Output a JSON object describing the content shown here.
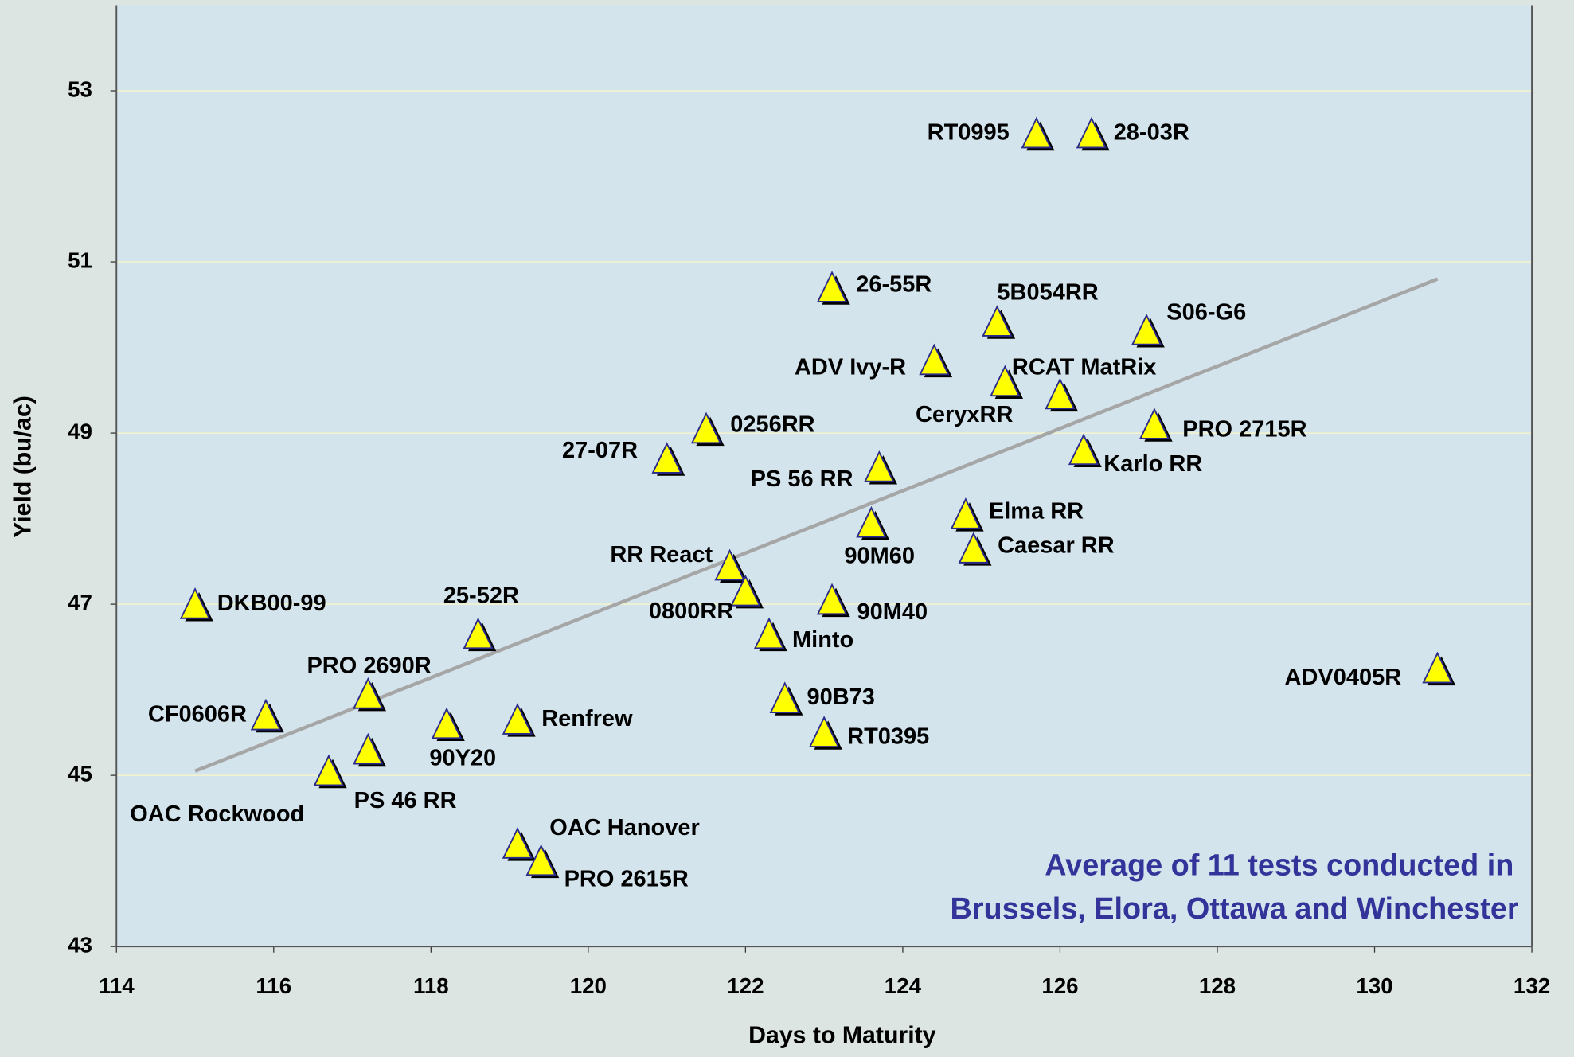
{
  "chart_data": {
    "type": "scatter",
    "xlabel": "Days to Maturity",
    "ylabel": "Yield (bu/ac)",
    "annotation": [
      "Average of 11 tests conducted in",
      "Brussels, Elora, Ottawa and Winchester"
    ],
    "xlim": [
      114,
      132
    ],
    "xticks": [
      114,
      116,
      118,
      120,
      122,
      124,
      126,
      128,
      130,
      132
    ],
    "ylim": [
      43,
      54
    ],
    "yticks": [
      43,
      45,
      47,
      49,
      51,
      53
    ],
    "grid": true,
    "color": "#ffff00",
    "labels": [
      "RT0995",
      "28-03R",
      "26-55R",
      "5B054RR",
      "S06-G6",
      "ADV Ivy-R",
      "RCAT MatRix",
      "CeryxRR",
      "PRO 2715R",
      "Karlo RR",
      "0256RR",
      "27-07R",
      "PS 56 RR",
      "Elma RR",
      "90M60",
      "Caesar RR",
      "RR React",
      "0800RR",
      "90M40",
      "DKB00-99",
      "25-52R",
      "Minto",
      "ADV0405R",
      "PRO 2690R",
      "90B73",
      "CF0606R",
      "90Y20",
      "Renfrew",
      "RT0395",
      "PS 46 RR",
      "OAC Rockwood",
      "OAC Hanover",
      "PRO 2615R"
    ],
    "x": [
      125.7,
      126.4,
      123.1,
      125.2,
      127.1,
      124.4,
      126.0,
      125.3,
      127.2,
      126.3,
      121.5,
      121.0,
      123.7,
      124.8,
      123.6,
      124.9,
      121.8,
      122.0,
      123.1,
      115.0,
      118.6,
      122.3,
      130.8,
      117.2,
      122.5,
      115.9,
      118.2,
      119.1,
      123.0,
      117.2,
      116.7,
      119.1,
      119.4
    ],
    "values": [
      52.5,
      52.5,
      50.7,
      50.3,
      50.2,
      49.85,
      49.45,
      49.6,
      49.1,
      48.8,
      49.05,
      48.7,
      48.6,
      48.05,
      47.95,
      47.65,
      47.45,
      47.15,
      47.05,
      47.0,
      46.65,
      46.65,
      46.25,
      45.95,
      45.9,
      45.7,
      45.6,
      45.65,
      45.5,
      45.3,
      45.05,
      44.2,
      44.0
    ],
    "trendline": {
      "x": [
        115,
        130.8
      ],
      "values": [
        45.05,
        50.8
      ],
      "color": "#a6a6a6"
    }
  }
}
